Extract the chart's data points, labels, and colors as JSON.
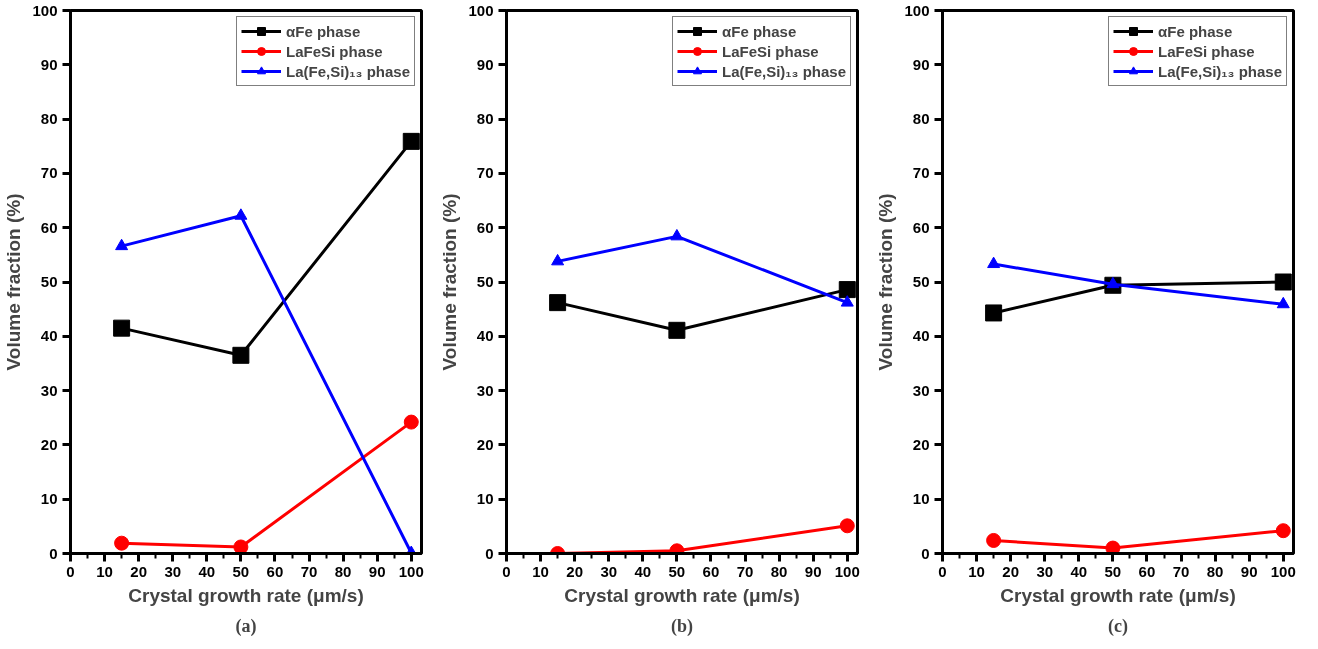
{
  "chart_data": [
    {
      "type": "line",
      "xlabel": "Crystal growth rate (μm/s)",
      "ylabel": "Volume fraction (%)",
      "annotations": [
        "(a)"
      ],
      "xlim": [
        0,
        103
      ],
      "ylim": [
        0,
        100
      ],
      "xticks": [
        0,
        10,
        20,
        30,
        40,
        50,
        60,
        70,
        80,
        90,
        100
      ],
      "yticks": [
        0,
        10,
        20,
        30,
        40,
        50,
        60,
        70,
        80,
        90,
        100
      ],
      "grid": false,
      "legend": "top right",
      "line_style": "solid",
      "x": [
        15,
        50,
        100
      ],
      "series": [
        {
          "name": "αFe phase",
          "color": "#000000",
          "marker": "square",
          "values": [
            41.5,
            36.5,
            75.9
          ]
        },
        {
          "name": "LaFeSi phase",
          "color": "#ff0000",
          "marker": "circle",
          "values": [
            1.9,
            1.2,
            24.2
          ]
        },
        {
          "name": "La(Fe,Si)₁₃ phase",
          "color": "#0000ff",
          "marker": "triangle",
          "values": [
            56.6,
            62.2,
            0.1
          ]
        }
      ]
    },
    {
      "type": "line",
      "xlabel": "Crystal growth rate (μm/s)",
      "ylabel": "Volume fraction (%)",
      "annotations": [
        "(b)"
      ],
      "xlim": [
        0,
        103
      ],
      "ylim": [
        0,
        100
      ],
      "xticks": [
        0,
        10,
        20,
        30,
        40,
        50,
        60,
        70,
        80,
        90,
        100
      ],
      "yticks": [
        0,
        10,
        20,
        30,
        40,
        50,
        60,
        70,
        80,
        90,
        100
      ],
      "grid": false,
      "legend": "top right",
      "line_style": "solid",
      "x": [
        15,
        50,
        100
      ],
      "series": [
        {
          "name": "αFe phase",
          "color": "#000000",
          "marker": "square",
          "values": [
            46.2,
            41.1,
            48.6
          ]
        },
        {
          "name": "LaFeSi phase",
          "color": "#ff0000",
          "marker": "circle",
          "values": [
            0.0,
            0.5,
            5.1
          ]
        },
        {
          "name": "La(Fe,Si)₁₃ phase",
          "color": "#0000ff",
          "marker": "triangle",
          "values": [
            53.8,
            58.4,
            46.2
          ]
        }
      ]
    },
    {
      "type": "line",
      "xlabel": "Crystal growth rate (μm/s)",
      "ylabel": "Volume fraction (%)",
      "annotations": [
        "(c)"
      ],
      "xlim": [
        0,
        103
      ],
      "ylim": [
        0,
        100
      ],
      "xticks": [
        0,
        10,
        20,
        30,
        40,
        50,
        60,
        70,
        80,
        90,
        100
      ],
      "yticks": [
        0,
        10,
        20,
        30,
        40,
        50,
        60,
        70,
        80,
        90,
        100
      ],
      "grid": false,
      "legend": "top right",
      "line_style": "solid",
      "x": [
        15,
        50,
        100
      ],
      "series": [
        {
          "name": "αFe phase",
          "color": "#000000",
          "marker": "square",
          "values": [
            44.3,
            49.4,
            50.0
          ]
        },
        {
          "name": "LaFeSi phase",
          "color": "#ff0000",
          "marker": "circle",
          "values": [
            2.4,
            1.0,
            4.2
          ]
        },
        {
          "name": "La(Fe,Si)₁₃ phase",
          "color": "#0000ff",
          "marker": "triangle",
          "values": [
            53.3,
            49.6,
            45.9
          ]
        }
      ]
    }
  ]
}
